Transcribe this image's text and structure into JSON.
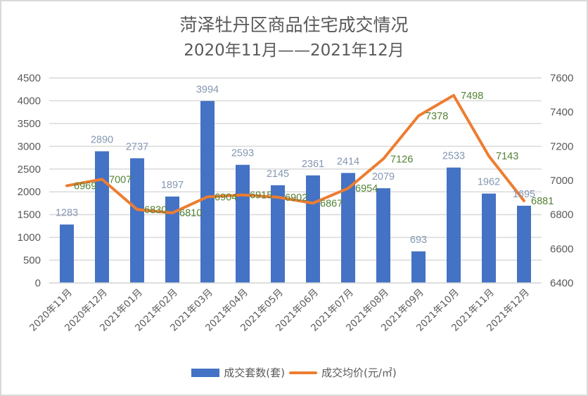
{
  "chart_data": {
    "type": "bar+line",
    "title": "菏泽牡丹区商品住宅成交情况",
    "subtitle": "2020年11月——2021年12月",
    "categories": [
      "2020年11月",
      "2020年12月",
      "2021年01月",
      "2021年02月",
      "2021年03月",
      "2021年04月",
      "2021年05月",
      "2021年06月",
      "2021年07月",
      "2021年08月",
      "2021年09月",
      "2021年10月",
      "2021年11月",
      "2021年12月"
    ],
    "series": [
      {
        "name": "成交套数(套)",
        "type": "bar",
        "axis": "left",
        "color": "#4472c4",
        "values": [
          1283,
          2890,
          2737,
          1897,
          3994,
          2593,
          2145,
          2361,
          2414,
          2079,
          693,
          2533,
          1962,
          1695
        ]
      },
      {
        "name": "成交均价(元/㎡)",
        "type": "line",
        "axis": "right",
        "color": "#ed7d31",
        "values": [
          6969,
          7007,
          6830,
          6810,
          6904,
          6915,
          6902,
          6867,
          6954,
          7126,
          7378,
          7498,
          7143,
          6881
        ]
      }
    ],
    "left_axis": {
      "ylim": [
        0,
        4500
      ],
      "ticks": [
        0,
        500,
        1000,
        1500,
        2000,
        2500,
        3000,
        3500,
        4000,
        4500
      ]
    },
    "right_axis": {
      "ylim": [
        6400,
        7600
      ],
      "ticks": [
        6400,
        6600,
        6800,
        7000,
        7200,
        7400,
        7600
      ]
    },
    "grid": true,
    "legend_position": "bottom",
    "xlabel": "",
    "ylabel": ""
  },
  "title": {
    "line1": "菏泽牡丹区商品住宅成交情况",
    "line2": "2020年11月——2021年12月"
  },
  "legend": {
    "bar_label": "成交套数(套)",
    "line_label": "成交均价(元/㎡)"
  }
}
